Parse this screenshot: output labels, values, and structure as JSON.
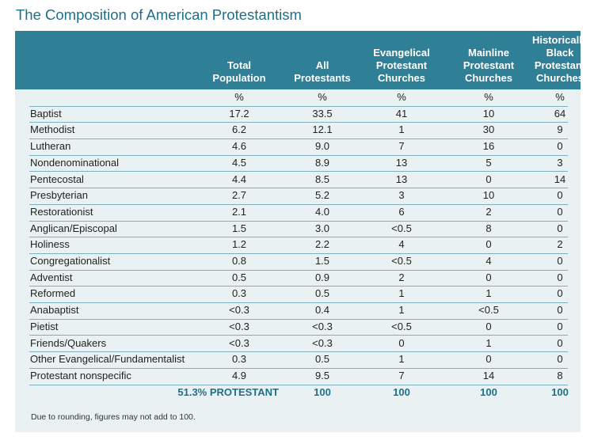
{
  "title": "The Composition of American Protestantism",
  "columns": [
    [
      "Total",
      "Population"
    ],
    [
      "All",
      "Protestants"
    ],
    [
      "Evangelical",
      "Protestant",
      "Churches"
    ],
    [
      "Mainline",
      "Protestant",
      "Churches"
    ],
    [
      "Historically",
      "Black",
      "Protestant",
      "Churches"
    ]
  ],
  "units": [
    "%",
    "%",
    "%",
    "%",
    "%"
  ],
  "rows": [
    {
      "label": "Baptist",
      "values": [
        "17.2",
        "33.5",
        "41",
        "10",
        "64"
      ]
    },
    {
      "label": "Methodist",
      "values": [
        "6.2",
        "12.1",
        "1",
        "30",
        "9"
      ]
    },
    {
      "label": "Lutheran",
      "values": [
        "4.6",
        "9.0",
        "7",
        "16",
        "0"
      ]
    },
    {
      "label": "Nondenominational",
      "values": [
        "4.5",
        "8.9",
        "13",
        "5",
        "3"
      ]
    },
    {
      "label": "Pentecostal",
      "values": [
        "4.4",
        "8.5",
        "13",
        "0",
        "14"
      ]
    },
    {
      "label": "Presbyterian",
      "values": [
        "2.7",
        "5.2",
        "3",
        "10",
        "0"
      ]
    },
    {
      "label": "Restorationist",
      "values": [
        "2.1",
        "4.0",
        "6",
        "2",
        "0"
      ]
    },
    {
      "label": "Anglican/Episcopal",
      "values": [
        "1.5",
        "3.0",
        "<0.5",
        "8",
        "0"
      ]
    },
    {
      "label": "Holiness",
      "values": [
        "1.2",
        "2.2",
        "4",
        "0",
        "2"
      ]
    },
    {
      "label": "Congregationalist",
      "values": [
        "0.8",
        "1.5",
        "<0.5",
        "4",
        "0"
      ]
    },
    {
      "label": "Adventist",
      "values": [
        "0.5",
        "0.9",
        "2",
        "0",
        "0"
      ]
    },
    {
      "label": "Reformed",
      "values": [
        "0.3",
        "0.5",
        "1",
        "1",
        "0"
      ]
    },
    {
      "label": "Anabaptist",
      "values": [
        "<0.3",
        "0.4",
        "1",
        "<0.5",
        "0"
      ]
    },
    {
      "label": "Pietist",
      "values": [
        "<0.3",
        "<0.3",
        "<0.5",
        "0",
        "0"
      ]
    },
    {
      "label": "Friends/Quakers",
      "values": [
        "<0.3",
        "<0.3",
        "0",
        "1",
        "0"
      ]
    },
    {
      "label": "Other Evangelical/Fundamentalist",
      "values": [
        "0.3",
        "0.5",
        "1",
        "0",
        "0"
      ]
    },
    {
      "label": "Protestant nonspecific",
      "values": [
        "4.9",
        "9.5",
        "7",
        "14",
        "8"
      ]
    }
  ],
  "total_row": {
    "label": "51.3% PROTESTANT",
    "values": [
      "100",
      "100",
      "100",
      "100"
    ]
  },
  "note": "Due to rounding, figures may not add to 100.",
  "colors": {
    "header": "#2f7f97",
    "panel": "#eaf1f3",
    "accent": "#1f6f8b",
    "rule": "#7fb0bf"
  }
}
